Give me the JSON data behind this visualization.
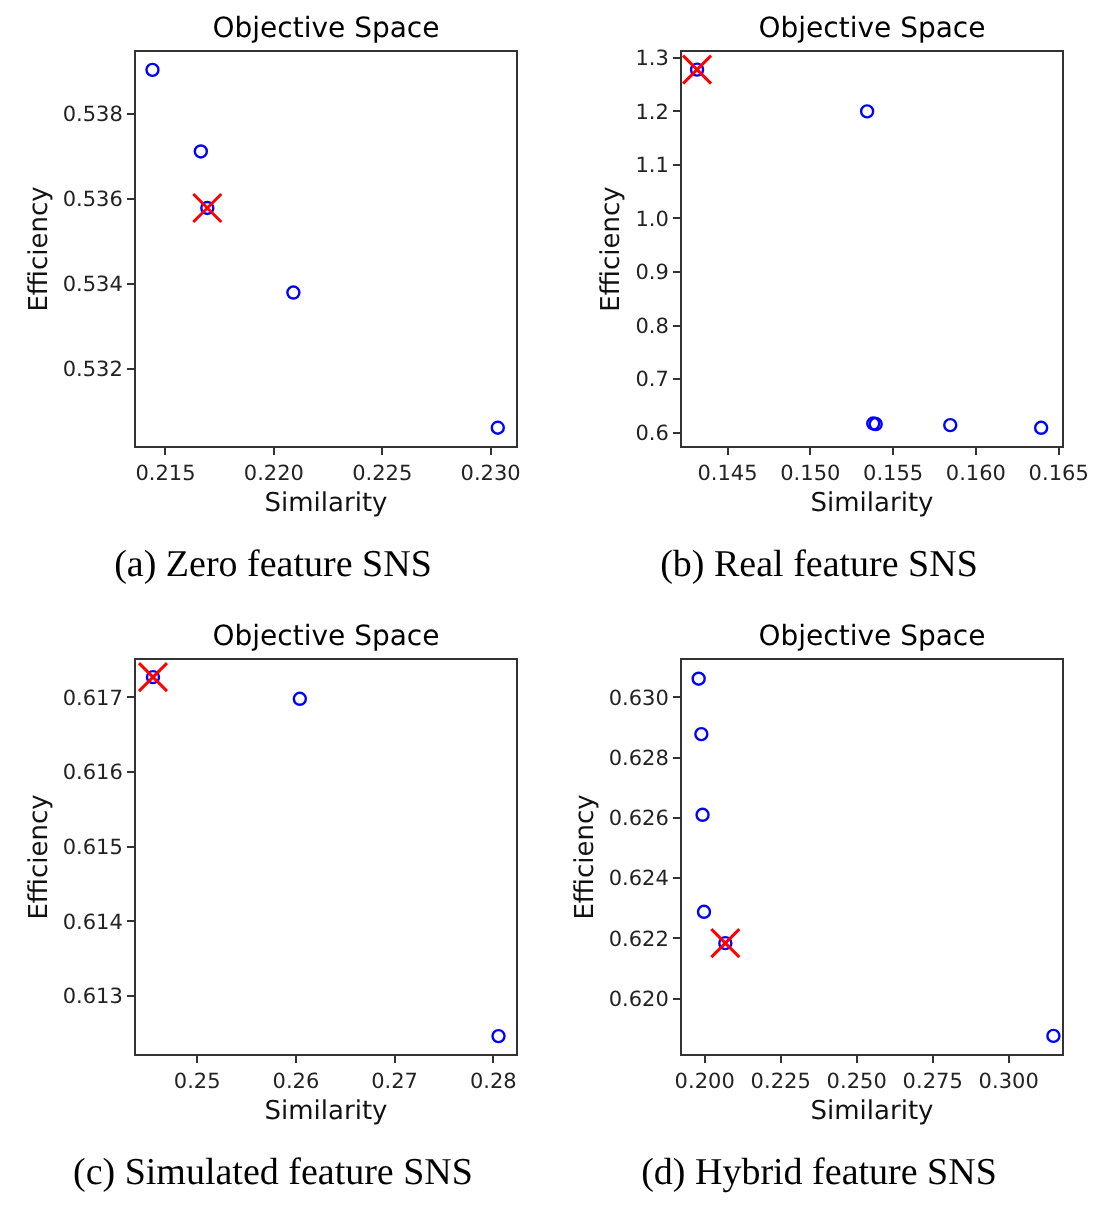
{
  "chart_data": [
    {
      "type": "scatter",
      "title": "Objective Space",
      "xlabel": "Similarity",
      "ylabel": "Efficiency",
      "annotations": [
        "(a) Zero feature SNS"
      ],
      "grid": false,
      "xlim": [
        0.21364,
        0.23117
      ],
      "xticks": [
        {
          "value": 0.215,
          "label": "0.215"
        },
        {
          "value": 0.22,
          "label": "0.220"
        },
        {
          "value": 0.225,
          "label": "0.225"
        },
        {
          "value": 0.23,
          "label": "0.230"
        }
      ],
      "ylim": [
        0.53019,
        0.53946
      ],
      "yticks": [
        {
          "value": 0.532,
          "label": "0.532"
        },
        {
          "value": 0.534,
          "label": "0.534"
        },
        {
          "value": 0.536,
          "label": "0.536"
        },
        {
          "value": 0.538,
          "label": "0.538"
        }
      ],
      "series": [
        {
          "color": "#0000ff",
          "marker": "circle",
          "x": [
            0.2144,
            0.21663,
            0.21693,
            0.2209,
            0.23033
          ],
          "values": [
            0.53904,
            0.53712,
            0.53579,
            0.5338,
            0.53062
          ]
        },
        {
          "color": "#ff0000",
          "marker": "cross",
          "x": [
            0.21693
          ],
          "values": [
            0.53579
          ]
        }
      ]
    },
    {
      "type": "scatter",
      "title": "Objective Space",
      "xlabel": "Similarity",
      "ylabel": "Efficiency",
      "annotations": [
        "(b) Real feature SNS"
      ],
      "grid": false,
      "xlim": [
        0.14225,
        0.1652
      ],
      "xticks": [
        0.145,
        {
          "value": 0.15,
          "label": "0.150"
        },
        0.155,
        {
          "value": 0.16,
          "label": "0.160"
        },
        0.165
      ],
      "ylim": [
        0.575,
        1.311
      ],
      "yticks": [
        0.6,
        0.7,
        0.8,
        0.9,
        {
          "value": 1,
          "label": "1.0"
        },
        1.1,
        1.2,
        1.3
      ],
      "series": [
        {
          "color": "#0000ff",
          "marker": "circle",
          "x": [
            0.14316,
            0.15343,
            0.1538,
            0.15395,
            0.15845,
            0.16394
          ],
          "values": [
            1.278,
            1.2,
            0.617,
            0.616,
            0.614,
            0.609
          ]
        },
        {
          "color": "#ff0000",
          "marker": "cross",
          "x": [
            0.14316
          ],
          "values": [
            1.278
          ]
        }
      ]
    },
    {
      "type": "scatter",
      "title": "Objective Space",
      "xlabel": "Similarity",
      "ylabel": "Efficiency",
      "annotations": [
        "(c) Simulated feature SNS"
      ],
      "grid": false,
      "xlim": [
        0.2438,
        0.2823
      ],
      "xticks": [
        0.25,
        0.26,
        0.27,
        0.28
      ],
      "ylim": [
        0.61222,
        0.6175
      ],
      "yticks": [
        0.613,
        0.614,
        0.615,
        0.616,
        0.617
      ],
      "series": [
        {
          "color": "#0000ff",
          "marker": "circle",
          "x": [
            0.24552,
            0.2604,
            0.28053
          ],
          "values": [
            0.61727,
            0.61698,
            0.61246
          ]
        },
        {
          "color": "#ff0000",
          "marker": "cross",
          "x": [
            0.24552
          ],
          "values": [
            0.61727
          ]
        }
      ]
    },
    {
      "type": "scatter",
      "title": "Objective Space",
      "xlabel": "Similarity",
      "ylabel": "Efficiency",
      "annotations": [
        "(d) Hybrid feature SNS"
      ],
      "grid": false,
      "xlim": [
        0.19254,
        0.31754
      ],
      "xticks": [
        {
          "value": 0.2,
          "label": "0.200"
        },
        0.225,
        {
          "value": 0.25,
          "label": "0.250"
        },
        0.275,
        {
          "value": 0.3,
          "label": "0.300"
        }
      ],
      "ylim": [
        0.61816,
        0.63124
      ],
      "yticks": [
        {
          "value": 0.62,
          "label": "0.620"
        },
        0.622,
        0.624,
        0.626,
        0.628,
        {
          "value": 0.63,
          "label": "0.630"
        }
      ],
      "series": [
        {
          "color": "#0000ff",
          "marker": "circle",
          "x": [
            0.19803,
            0.1989,
            0.1993,
            0.19978,
            0.20679,
            0.31472
          ],
          "values": [
            0.63062,
            0.62878,
            0.6261,
            0.62288,
            0.62184,
            0.61876
          ]
        },
        {
          "color": "#ff0000",
          "marker": "cross",
          "x": [
            0.20679
          ],
          "values": [
            0.62184
          ]
        }
      ]
    }
  ]
}
